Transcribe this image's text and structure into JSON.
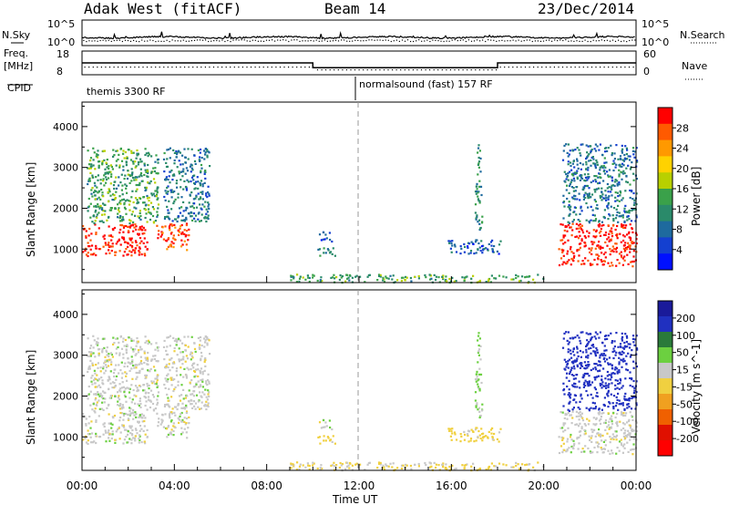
{
  "header": {
    "radar": "Adak West (fitACF)",
    "beam": "Beam 14",
    "date": "23/Dec/2014"
  },
  "panels": {
    "nsky_label": "N.Sky",
    "nsky_ticks": [
      "10^5",
      "10^0"
    ],
    "nsearch_label": "N.Search",
    "nsearch_ticks": [
      "10^5",
      "10^0"
    ],
    "freq_label": [
      "Freq.",
      "[MHz]"
    ],
    "freq_ticks": [
      "18",
      "8"
    ],
    "nave_label": "Nave",
    "nave_ticks": [
      "60",
      "0"
    ],
    "cpid_label": "CPID",
    "cpid_segments": [
      {
        "label": "themis 3300 RF",
        "start_hour": 0
      },
      {
        "label": "normalsound (fast) 157 RF",
        "start_hour": 12
      }
    ]
  },
  "axes": {
    "ylabel": "Slant Range [km]",
    "xlabel": "Time UT",
    "y_ticks": [
      "1000",
      "2000",
      "3000",
      "4000"
    ],
    "x_ticks": [
      "00:00",
      "04:00",
      "08:00",
      "12:00",
      "16:00",
      "20:00",
      "00:00"
    ]
  },
  "power_scale": {
    "label": "Power [dB]",
    "ticks": [
      "28",
      "24",
      "20",
      "16",
      "12",
      "8",
      "4"
    ],
    "colors": [
      "#ff0000",
      "#ff5a00",
      "#ff9900",
      "#ffd200",
      "#b8d000",
      "#3aa14a",
      "#2a8a6a",
      "#1e6a9e",
      "#1440d0",
      "#0010ff"
    ]
  },
  "velocity_scale": {
    "label": "Velocity [m s^-1]",
    "ticks": [
      "200",
      "100",
      "50",
      "15",
      "-15",
      "-50",
      "-100",
      "-200"
    ],
    "colors": [
      "#1a1a9a",
      "#2030c0",
      "#2a7a3a",
      "#6cd040",
      "#c8c8c8",
      "#f0d040",
      "#f0a020",
      "#f06000",
      "#e01000",
      "#ff0000"
    ]
  },
  "chart_data": {
    "type": "heatmap",
    "title": "Adak West (fitACF) Beam 14 23/Dec/2014",
    "xlabel": "Time UT",
    "ylabel": "Slant Range [km]",
    "xlim": [
      0,
      24
    ],
    "ylim": [
      180,
      4600
    ],
    "freq_segments": [
      {
        "from_hour": 0,
        "to_hour": 10,
        "mhz": 13
      },
      {
        "from_hour": 10,
        "to_hour": 18,
        "mhz": 11
      },
      {
        "from_hour": 18,
        "to_hour": 24,
        "mhz": 13
      }
    ],
    "echo_regions": [
      {
        "t0": 0.0,
        "t1": 2.8,
        "r0": 850,
        "r1": 1650,
        "power_db": 30,
        "velocity": 0
      },
      {
        "t0": 0.2,
        "t1": 3.3,
        "r0": 1650,
        "r1": 3500,
        "power_db": 14,
        "velocity": 0
      },
      {
        "t0": 3.2,
        "t1": 4.6,
        "r0": 1000,
        "r1": 1650,
        "power_db": 28,
        "velocity": 0
      },
      {
        "t0": 3.5,
        "t1": 5.5,
        "r0": 1700,
        "r1": 3500,
        "power_db": 10,
        "velocity": 0
      },
      {
        "t0": 10.1,
        "t1": 11.0,
        "r0": 850,
        "r1": 1050,
        "power_db": 12,
        "velocity": -30
      },
      {
        "t0": 10.2,
        "t1": 10.8,
        "r0": 1200,
        "r1": 1450,
        "power_db": 6,
        "velocity": 0
      },
      {
        "t0": 9.0,
        "t1": 20.0,
        "r0": 200,
        "r1": 400,
        "power_db": 14,
        "velocity": -20
      },
      {
        "t0": 15.8,
        "t1": 18.2,
        "r0": 900,
        "r1": 1250,
        "power_db": 8,
        "velocity": -30
      },
      {
        "t0": 17.0,
        "t1": 17.3,
        "r0": 1500,
        "r1": 3600,
        "power_db": 12,
        "velocity": 20
      },
      {
        "t0": 20.6,
        "t1": 24.0,
        "r0": 600,
        "r1": 1650,
        "power_db": 30,
        "velocity": 0
      },
      {
        "t0": 20.8,
        "t1": 24.0,
        "r0": 1650,
        "r1": 3600,
        "power_db": 10,
        "velocity": 150
      }
    ]
  }
}
